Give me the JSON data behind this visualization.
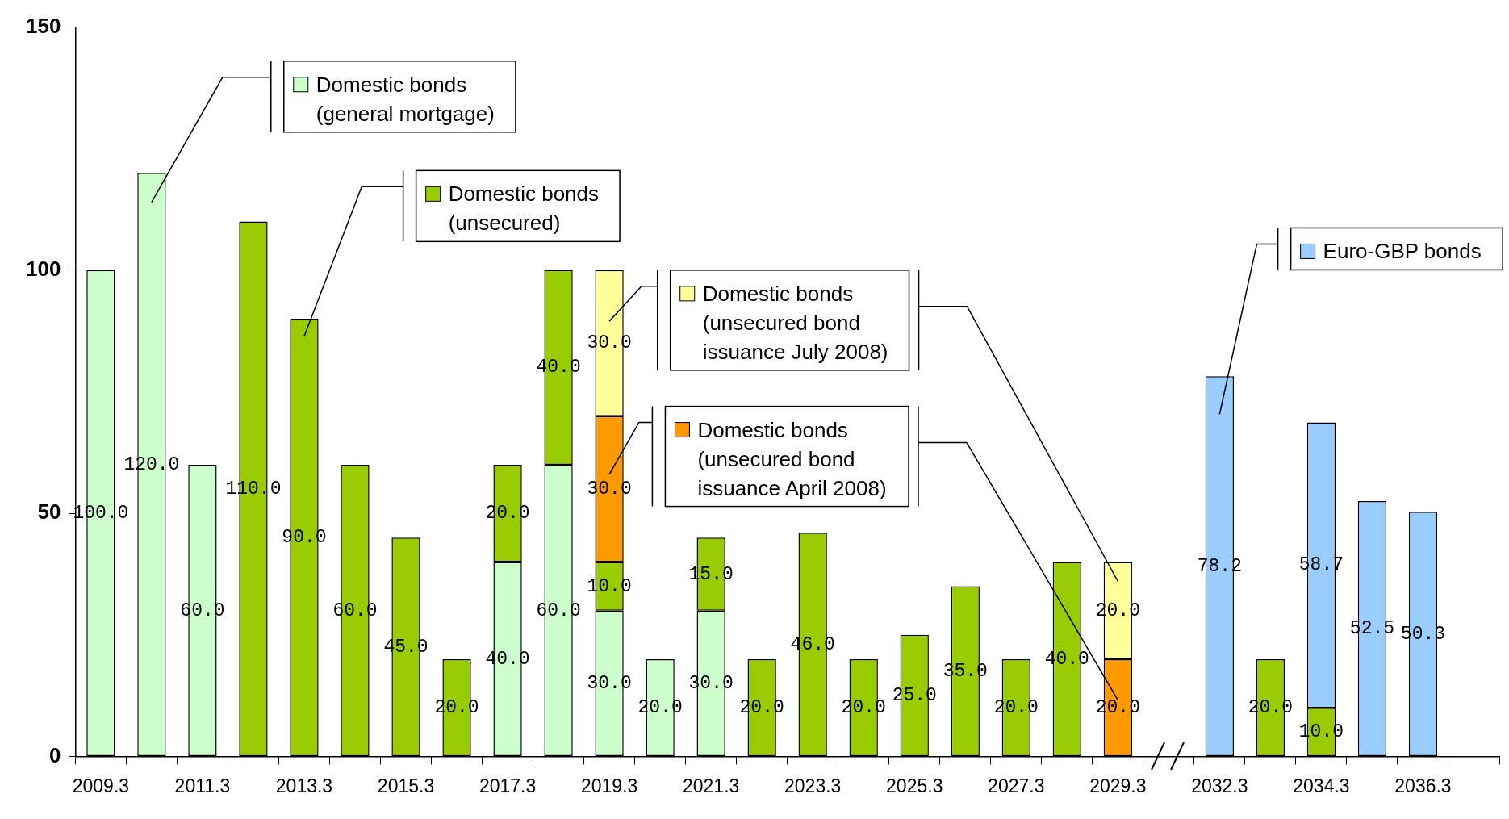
{
  "chart_data": {
    "type": "bar",
    "stacked": true,
    "categories": [
      "2009.3",
      null,
      "2011.3",
      null,
      "2013.3",
      null,
      "2015.3",
      null,
      "2017.3",
      null,
      "2019.3",
      null,
      "2021.3",
      null,
      "2023.3",
      null,
      "2025.3",
      null,
      "2027.3",
      null,
      "2029.3",
      null,
      "2032.3",
      null,
      "2034.3",
      null,
      "2036.3",
      null
    ],
    "ylim": [
      0,
      150
    ],
    "yticks": [
      0,
      50,
      100,
      150
    ],
    "grid": false,
    "legend": "top",
    "series": [
      {
        "name": "Domestic bonds (general mortgage)",
        "color": "#ccffcc",
        "values": [
          100,
          120,
          60,
          null,
          null,
          null,
          null,
          null,
          40,
          60,
          30,
          20,
          30,
          null,
          null,
          null,
          null,
          null,
          null,
          null,
          null,
          null,
          null,
          null,
          null,
          null,
          null,
          null
        ],
        "value_labels": [
          "100.0",
          "120.0",
          "60.0",
          null,
          null,
          null,
          null,
          null,
          "40.0",
          "60.0",
          "30.0",
          "20.0",
          "30.0",
          null,
          null,
          null,
          null,
          null,
          null,
          null,
          null,
          null,
          null,
          null,
          null,
          null,
          null,
          null
        ]
      },
      {
        "name": "Domestic bonds (unsecured)",
        "color": "#99cc00",
        "values": [
          null,
          null,
          null,
          110,
          90,
          60,
          45,
          20,
          20,
          40,
          10,
          null,
          15,
          20,
          46,
          20,
          25,
          35,
          20,
          40,
          null,
          null,
          null,
          20,
          10,
          null,
          null,
          null
        ],
        "value_labels": [
          null,
          null,
          null,
          "110.0",
          "90.0",
          "60.0",
          "45.0",
          "20.0",
          "20.0",
          "40.0",
          "10.0",
          null,
          "15.0",
          "20.0",
          "46.0",
          "20.0",
          "25.0",
          "35.0",
          "20.0",
          "40.0",
          null,
          null,
          null,
          "20.0",
          "10.0",
          null,
          null,
          null
        ]
      },
      {
        "name": "Domestic bonds (unsecured bond issuance April 2008)",
        "color": "#ff9900",
        "values": [
          null,
          null,
          null,
          null,
          null,
          null,
          null,
          null,
          null,
          null,
          30,
          null,
          null,
          null,
          null,
          null,
          null,
          null,
          null,
          null,
          20,
          null,
          null,
          null,
          null,
          null,
          null,
          null
        ],
        "value_labels": [
          null,
          null,
          null,
          null,
          null,
          null,
          null,
          null,
          null,
          null,
          "30.0",
          null,
          null,
          null,
          null,
          null,
          null,
          null,
          null,
          null,
          "20.0",
          null,
          null,
          null,
          null,
          null,
          null,
          null
        ]
      },
      {
        "name": "Domestic bonds (unsecured bond issuance July 2008)",
        "color": "#ffff99",
        "values": [
          null,
          null,
          null,
          null,
          null,
          null,
          null,
          null,
          null,
          null,
          30,
          null,
          null,
          null,
          null,
          null,
          null,
          null,
          null,
          null,
          20,
          null,
          null,
          null,
          null,
          null,
          null,
          null
        ],
        "value_labels": [
          null,
          null,
          null,
          null,
          null,
          null,
          null,
          null,
          null,
          null,
          "30.0",
          null,
          null,
          null,
          null,
          null,
          null,
          null,
          null,
          null,
          "20.0",
          null,
          null,
          null,
          null,
          null,
          null,
          null
        ]
      },
      {
        "name": "Euro-GBP bonds",
        "color": "#99ccff",
        "values": [
          null,
          null,
          null,
          null,
          null,
          null,
          null,
          null,
          null,
          null,
          null,
          null,
          null,
          null,
          null,
          null,
          null,
          null,
          null,
          null,
          null,
          null,
          78.2,
          null,
          58.7,
          52.5,
          50.3,
          null
        ],
        "value_labels": [
          null,
          null,
          null,
          null,
          null,
          null,
          null,
          null,
          null,
          null,
          null,
          null,
          null,
          null,
          null,
          null,
          null,
          null,
          null,
          null,
          null,
          null,
          "78.2",
          null,
          "58.7",
          "52.5",
          "50.3",
          null
        ]
      }
    ]
  }
}
